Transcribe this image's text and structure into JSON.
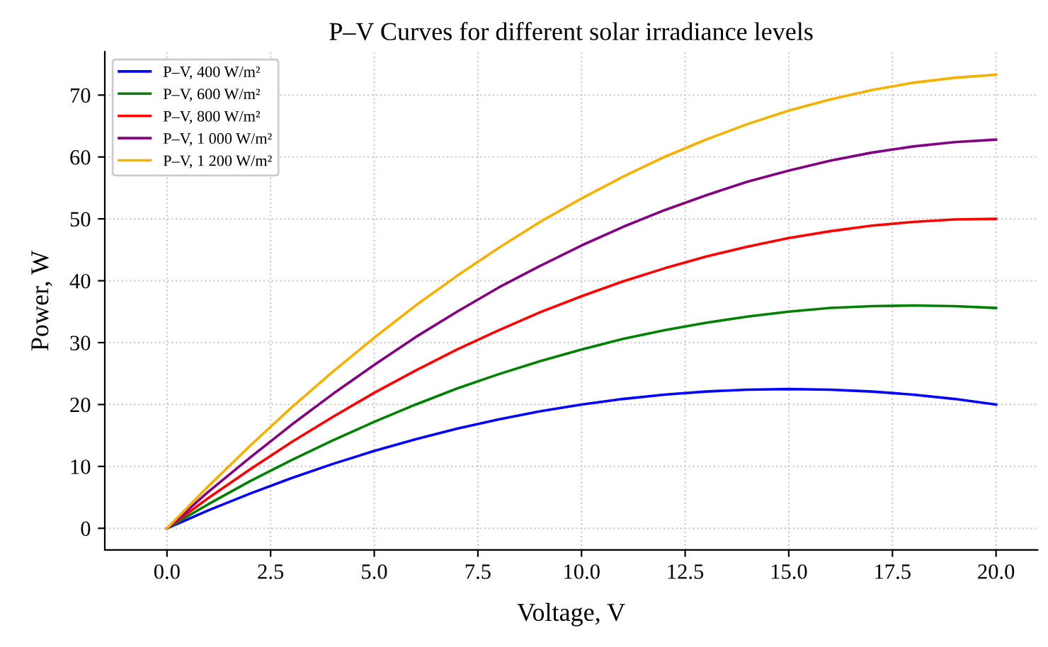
{
  "chart_data": {
    "type": "line",
    "title": "P–V Curves for different solar irradiance levels",
    "xlabel": "Voltage, V",
    "ylabel": "Power, W",
    "x": [
      0,
      1,
      2,
      3,
      4,
      5,
      6,
      7,
      8,
      9,
      10,
      11,
      12,
      13,
      14,
      15,
      16,
      17,
      18,
      19,
      20
    ],
    "series": [
      {
        "name": "P–V, 400 W/m²",
        "color": "#0000ff",
        "values": [
          0,
          2.9,
          5.6,
          8.1,
          10.4,
          12.5,
          14.4,
          16.1,
          17.6,
          18.9,
          20,
          20.9,
          21.6,
          22.1,
          22.4,
          22.5,
          22.4,
          22.1,
          21.6,
          20.9,
          20
        ]
      },
      {
        "name": "P–V, 600 W/m²",
        "color": "#008000",
        "values": [
          0,
          3.9,
          7.6,
          11,
          14.2,
          17.2,
          20,
          22.6,
          24.9,
          27,
          28.9,
          30.6,
          32,
          33.2,
          34.2,
          35,
          35.6,
          35.9,
          36,
          35.9,
          35.6
        ]
      },
      {
        "name": "P–V, 800 W/m²",
        "color": "#ff0000",
        "values": [
          0,
          4.9,
          9.5,
          13.9,
          18,
          21.9,
          25.5,
          28.9,
          32,
          34.9,
          37.5,
          39.9,
          42,
          43.9,
          45.5,
          46.9,
          48,
          48.9,
          49.5,
          49.9,
          50
        ]
      },
      {
        "name": "P–V, 1 000 W/m²",
        "color": "#800080",
        "values": [
          0,
          5.9,
          11.4,
          16.7,
          21.7,
          26.4,
          30.9,
          35,
          38.9,
          42.4,
          45.7,
          48.7,
          51.4,
          53.8,
          56,
          57.8,
          59.4,
          60.7,
          61.7,
          62.4,
          62.8
        ]
      },
      {
        "name": "P–V, 1 200 W/m²",
        "color": "#f5b000",
        "values": [
          0,
          6.8,
          13.3,
          19.5,
          25.3,
          30.8,
          36,
          40.8,
          45.3,
          49.5,
          53.3,
          56.8,
          60,
          62.8,
          65.3,
          67.5,
          69.3,
          70.8,
          72,
          72.8,
          73.3
        ]
      }
    ],
    "xlim": [
      -1.5,
      21
    ],
    "ylim": [
      -3.5,
      77
    ],
    "xticks": [
      {
        "value": 0,
        "label": "0.0"
      },
      {
        "value": 2.5,
        "label": "2.5"
      },
      {
        "value": 5,
        "label": "5.0"
      },
      {
        "value": 7.5,
        "label": "7.5"
      },
      {
        "value": 10,
        "label": "10.0"
      },
      {
        "value": 12.5,
        "label": "12.5"
      },
      {
        "value": 15,
        "label": "15.0"
      },
      {
        "value": 17.5,
        "label": "17.5"
      },
      {
        "value": 20,
        "label": "20.0"
      }
    ],
    "yticks": [
      0,
      10,
      20,
      30,
      40,
      50,
      60,
      70
    ],
    "grid": true,
    "legend": "top left",
    "line_style": "solid",
    "marker": "none"
  }
}
